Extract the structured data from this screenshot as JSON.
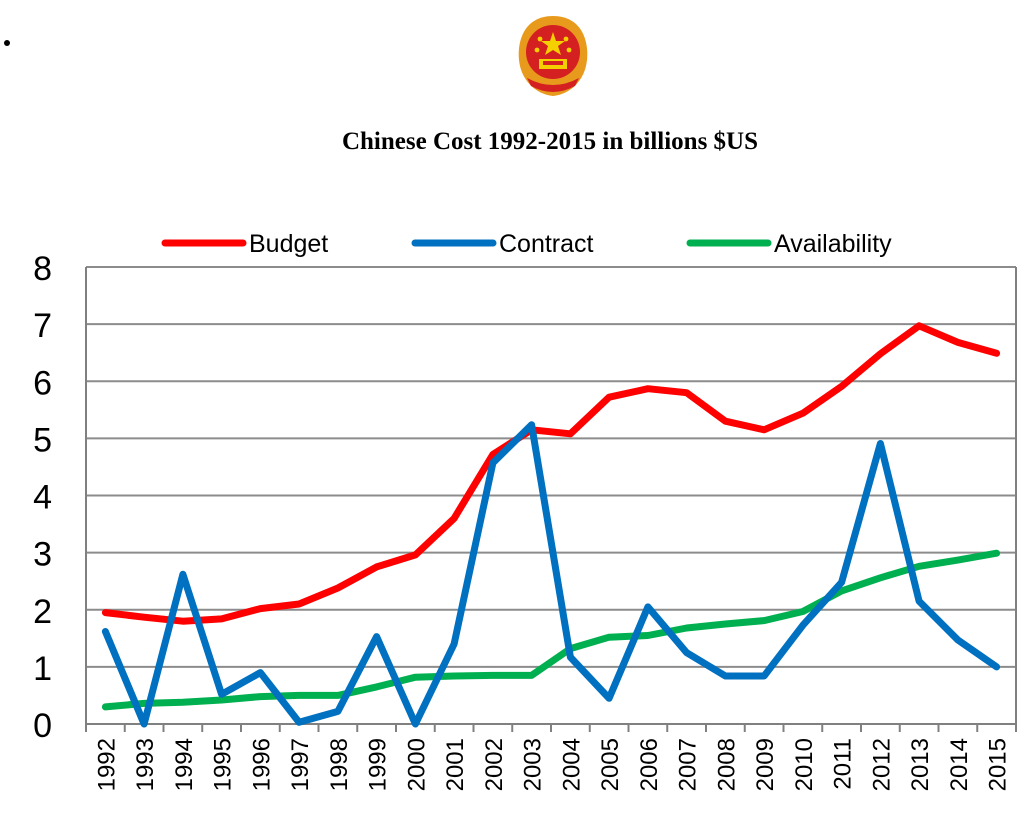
{
  "title": "Chinese  Cost 1992-2015 in billions $US",
  "emblem": "national-emblem-of-china",
  "chart_data": {
    "type": "line",
    "title": "Chinese  Cost 1992-2015 in billions $US",
    "xlabel": "",
    "ylabel": "",
    "ylim": [
      0,
      8
    ],
    "yticks": [
      "0",
      "1",
      "2",
      "3",
      "4",
      "5",
      "6",
      "7",
      "8"
    ],
    "grid": true,
    "legend": "top",
    "x": [
      "1992",
      "1993",
      "1994",
      "1995",
      "1996",
      "1997",
      "1998",
      "1999",
      "2000",
      "2001",
      "2002",
      "2003",
      "2004",
      "2005",
      "2006",
      "2007",
      "2008",
      "2009",
      "2010",
      "2011",
      "2012",
      "2013",
      "2014",
      "2015"
    ],
    "series": [
      {
        "name": "Budget",
        "color": "#ff0000",
        "values": [
          1.95,
          1.87,
          1.8,
          1.84,
          2.02,
          2.1,
          2.38,
          2.75,
          2.96,
          3.6,
          4.72,
          5.15,
          5.08,
          5.72,
          5.87,
          5.8,
          5.3,
          5.15,
          5.44,
          5.91,
          6.48,
          6.97,
          6.68,
          6.49
        ]
      },
      {
        "name": "Contract",
        "color": "#0070c0",
        "values": [
          1.62,
          0.0,
          2.62,
          0.52,
          0.9,
          0.03,
          0.22,
          1.53,
          0.0,
          1.4,
          4.57,
          5.24,
          1.17,
          0.45,
          2.05,
          1.25,
          0.84,
          0.84,
          1.73,
          2.48,
          4.91,
          2.15,
          1.47,
          1.0
        ]
      },
      {
        "name": "Availability",
        "color": "#00b050",
        "values": [
          0.3,
          0.36,
          0.38,
          0.42,
          0.48,
          0.5,
          0.5,
          0.65,
          0.82,
          0.84,
          0.85,
          0.85,
          1.32,
          1.52,
          1.55,
          1.68,
          1.75,
          1.81,
          1.97,
          2.33,
          2.56,
          2.76,
          2.87,
          2.99
        ]
      }
    ]
  }
}
